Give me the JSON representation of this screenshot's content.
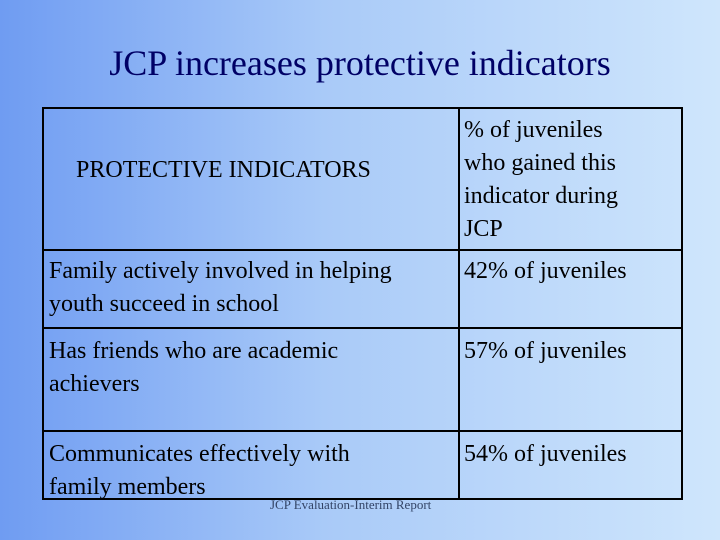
{
  "title": "JCP increases protective indicators",
  "table": {
    "header": {
      "col1": "PROTECTIVE INDICATORS",
      "col2_lines": [
        "% of juveniles",
        "who gained this",
        "indicator during",
        "JCP"
      ]
    },
    "rows": [
      {
        "indicator_lines": [
          "Family actively involved in helping",
          "youth succeed in school"
        ],
        "value": "42% of juveniles"
      },
      {
        "indicator_lines": [
          "Has friends who are academic",
          "achievers"
        ],
        "value": "57% of juveniles"
      },
      {
        "indicator_lines": [
          "Communicates effectively with",
          "family members"
        ],
        "value": "54% of juveniles"
      }
    ]
  },
  "footer": "JCP Evaluation-Interim Report"
}
